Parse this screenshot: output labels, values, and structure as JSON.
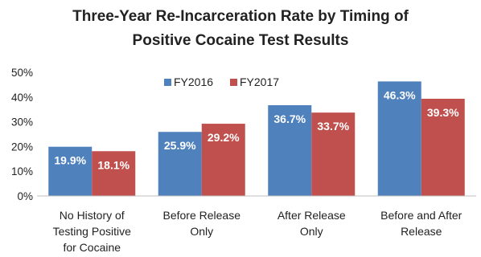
{
  "chart_data": {
    "type": "bar",
    "title_lines": [
      "Three-Year Re-Incarceration Rate by Timing of",
      "Positive Cocaine Test Results"
    ],
    "categories": [
      [
        "No History of",
        "Testing Positive",
        "for Cocaine"
      ],
      [
        "Before Release",
        "Only"
      ],
      [
        "After Release",
        "Only"
      ],
      [
        "Before and After",
        "Release"
      ]
    ],
    "series": [
      {
        "name": "FY2016",
        "color": "#4F81BD",
        "values": [
          19.9,
          25.9,
          36.7,
          46.3
        ],
        "labels": [
          "19.9%",
          "25.9%",
          "36.7%",
          "46.3%"
        ]
      },
      {
        "name": "FY2017",
        "color": "#C0504D",
        "values": [
          18.1,
          29.2,
          33.7,
          39.3
        ],
        "labels": [
          "18.1%",
          "29.2%",
          "33.7%",
          "39.3%"
        ]
      }
    ],
    "yticks": [
      "0%",
      "10%",
      "20%",
      "30%",
      "40%",
      "50%"
    ],
    "ylim": [
      0,
      50
    ],
    "legend_position": "top-left",
    "grid": false
  }
}
